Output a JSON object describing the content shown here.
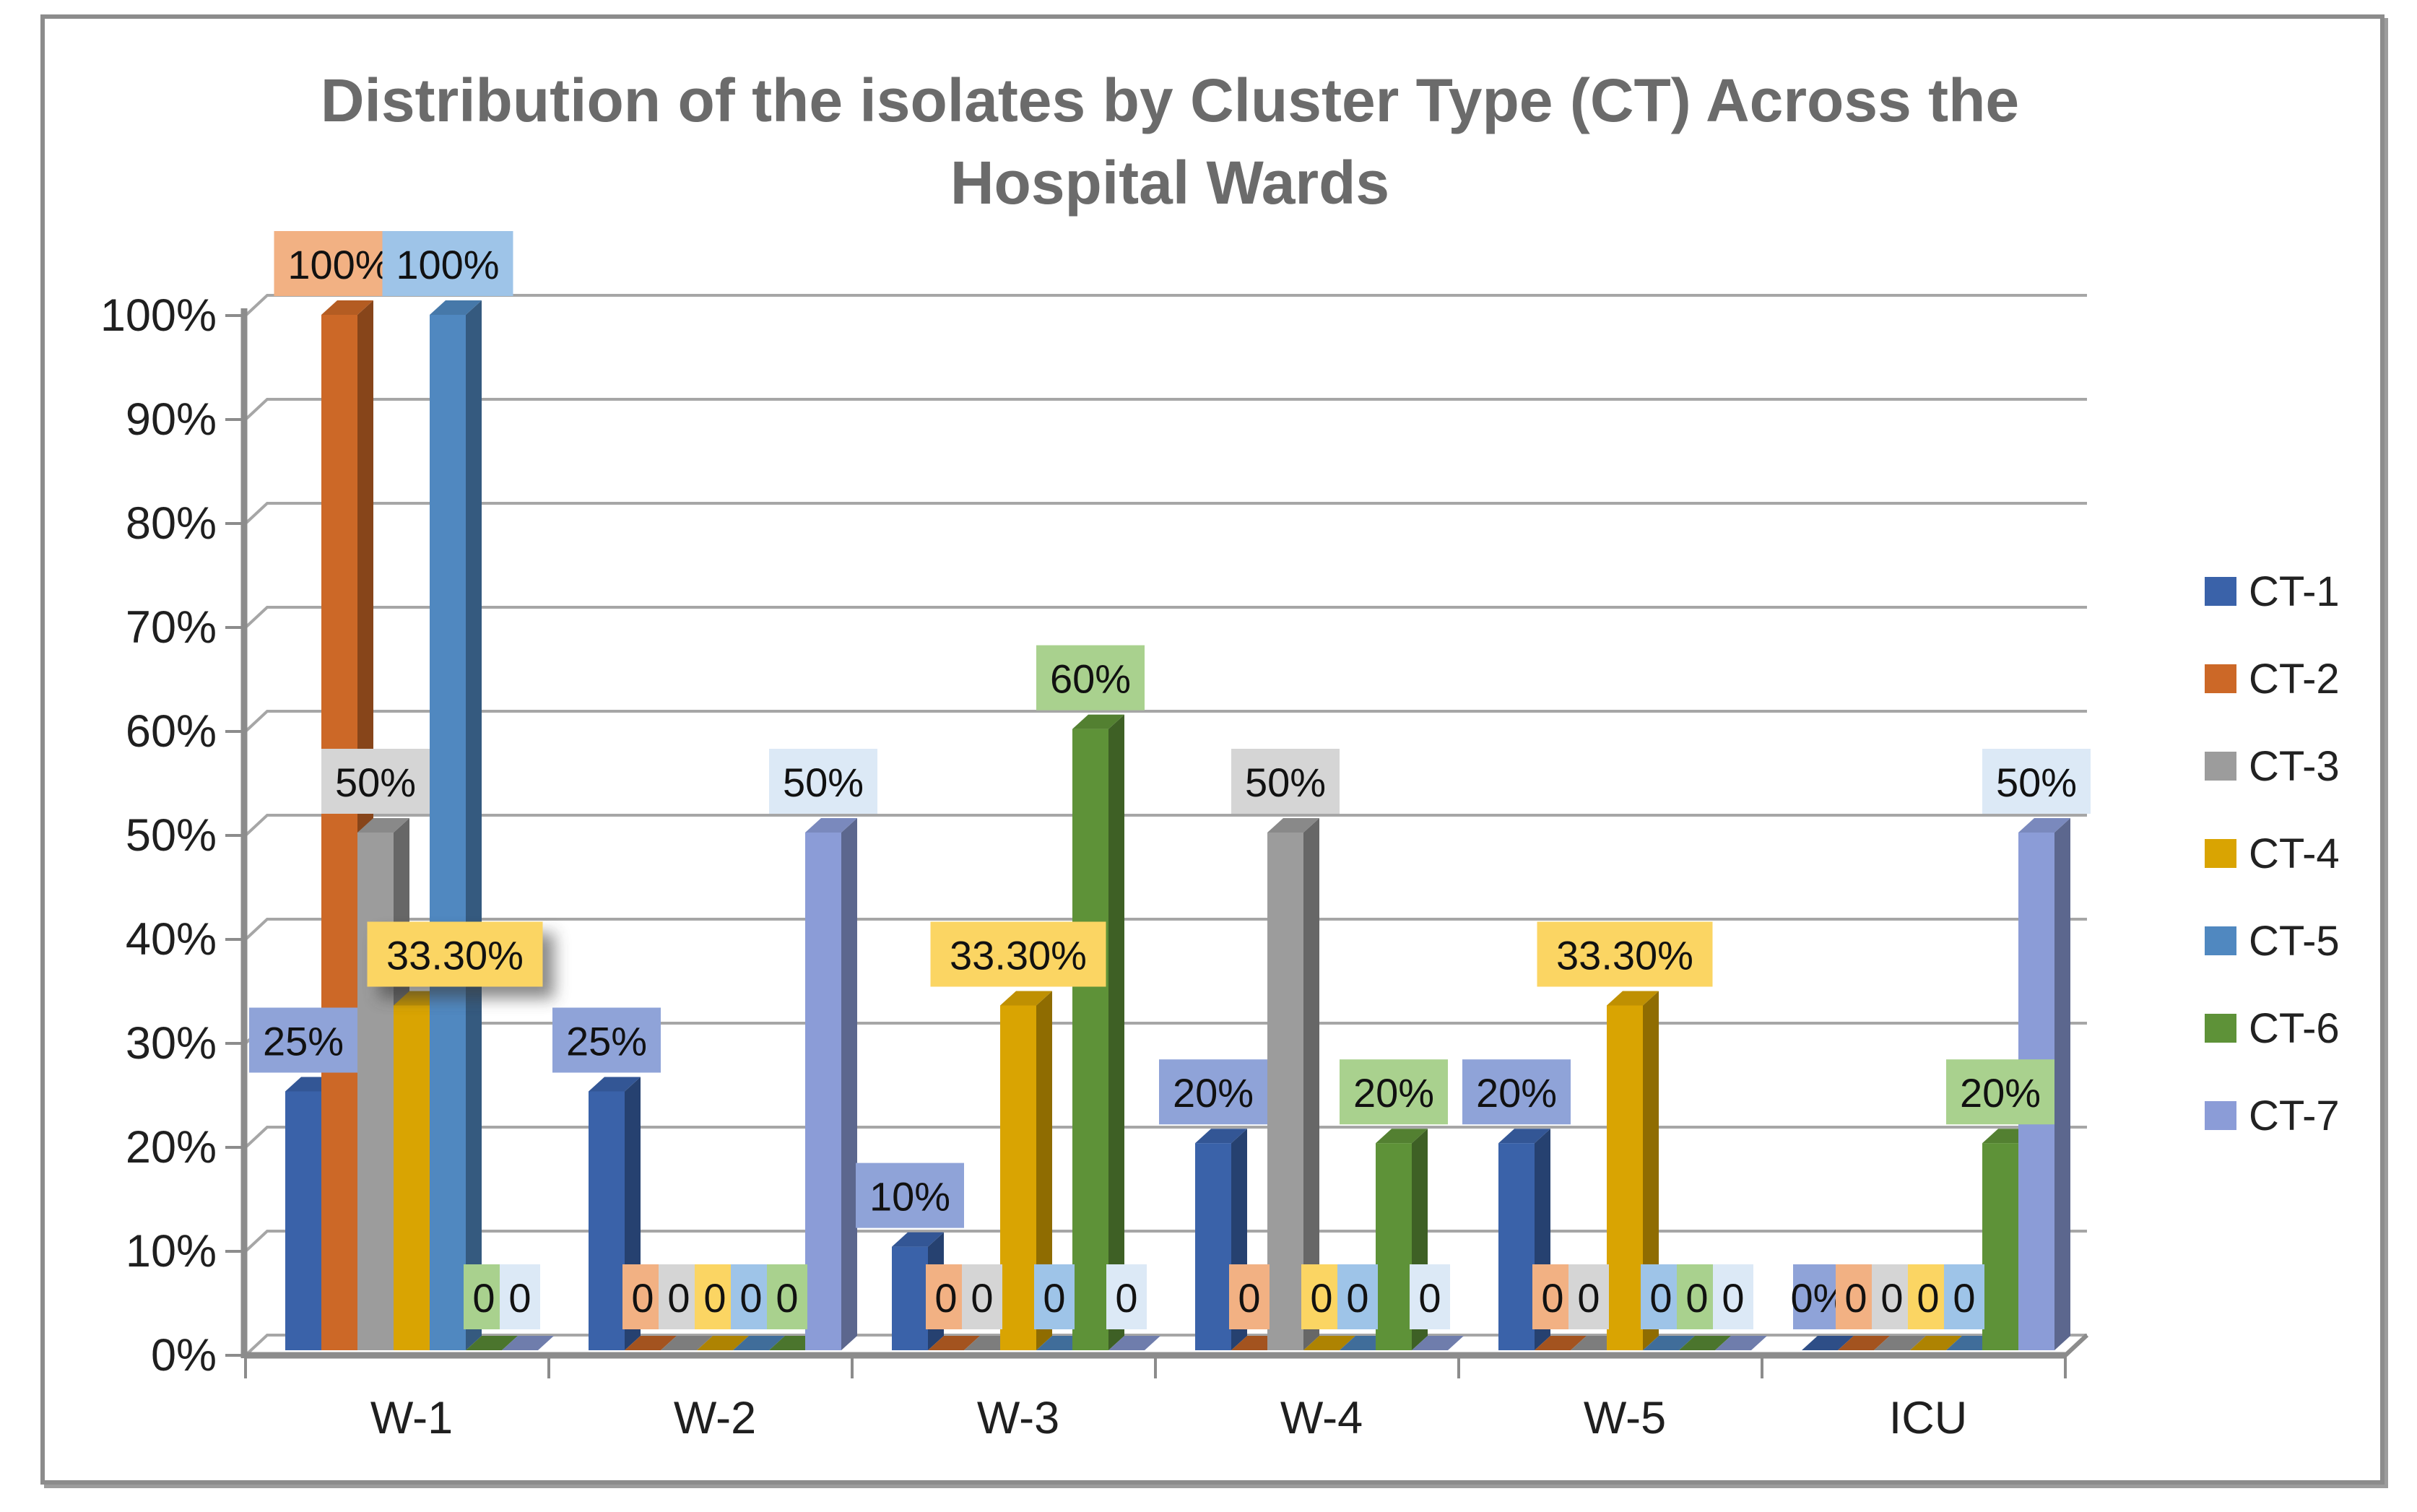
{
  "ui": {
    "background_color": "#FFFFFF",
    "frame_border_color": "#8C8C8C"
  },
  "chart_data": {
    "type": "bar",
    "style": "3d-clustered-column",
    "title": "Distribution of the isolates by Cluster Type (CT) Across the Hospital Wards",
    "title_lines": [
      "Distribution of the isolates by Cluster Type (CT) Across the",
      "Hospital Wards"
    ],
    "categories": [
      "W-1",
      "W-2",
      "W-3",
      "W-4",
      "W-5",
      "ICU"
    ],
    "y_axis": {
      "ticks": [
        "100%",
        "90%",
        "80%",
        "70%",
        "60%",
        "50%",
        "40%",
        "30%",
        "20%",
        "10%",
        "0%"
      ],
      "min": 0,
      "max": 100,
      "unit": "%"
    },
    "grid": true,
    "legend": {
      "position": "right",
      "entries": [
        "CT-1",
        "CT-2",
        "CT-3",
        "CT-4",
        "CT-5",
        "CT-6",
        "CT-7"
      ]
    },
    "series": [
      {
        "name": "CT-1",
        "color": "#3A62A9",
        "label_bg": "#8FA3D8",
        "values": [
          25,
          25,
          10,
          20,
          20,
          0
        ],
        "labels": [
          "25%",
          "25%",
          "10%",
          "20%",
          "20%",
          "0%"
        ]
      },
      {
        "name": "CT-2",
        "color": "#CC6827",
        "label_bg": "#F2B183",
        "values": [
          100,
          0,
          0,
          0,
          0,
          0
        ],
        "labels": [
          "100%",
          "0",
          "0",
          "0",
          "0",
          "0"
        ]
      },
      {
        "name": "CT-3",
        "color": "#9C9C9C",
        "label_bg": "#D5D5D5",
        "values": [
          50,
          0,
          0,
          50,
          0,
          0
        ],
        "labels": [
          "50%",
          "0",
          "0",
          "50%",
          "0",
          "0"
        ]
      },
      {
        "name": "CT-4",
        "color": "#D9A402",
        "label_bg": "#FBD563",
        "values": [
          33.3,
          0,
          33.3,
          0,
          33.3,
          0
        ],
        "labels": [
          "33.30%",
          "0",
          "33.30%",
          "0",
          "33.30%",
          "0"
        ]
      },
      {
        "name": "CT-5",
        "color": "#5088C0",
        "label_bg": "#9EC4E8",
        "values": [
          100,
          0,
          0,
          0,
          0,
          0
        ],
        "labels": [
          "100%",
          "0",
          "0",
          "0",
          "0",
          "0"
        ]
      },
      {
        "name": "CT-6",
        "color": "#5E9238",
        "label_bg": "#A9D18E",
        "values": [
          0,
          0,
          60,
          20,
          0,
          20
        ],
        "labels": [
          "0",
          "0",
          "60%",
          "20%",
          "0",
          "20%"
        ]
      },
      {
        "name": "CT-7",
        "color": "#8B9CD7",
        "label_bg": "#DCE9F6",
        "values": [
          0,
          50,
          0,
          0,
          0,
          50
        ],
        "labels": [
          "0",
          "50%",
          "0",
          "0",
          "0",
          "50%"
        ]
      }
    ],
    "label_adjustments": [
      {
        "category_index": 0,
        "series_index": 3,
        "dx": 60,
        "shadow": true
      }
    ]
  }
}
